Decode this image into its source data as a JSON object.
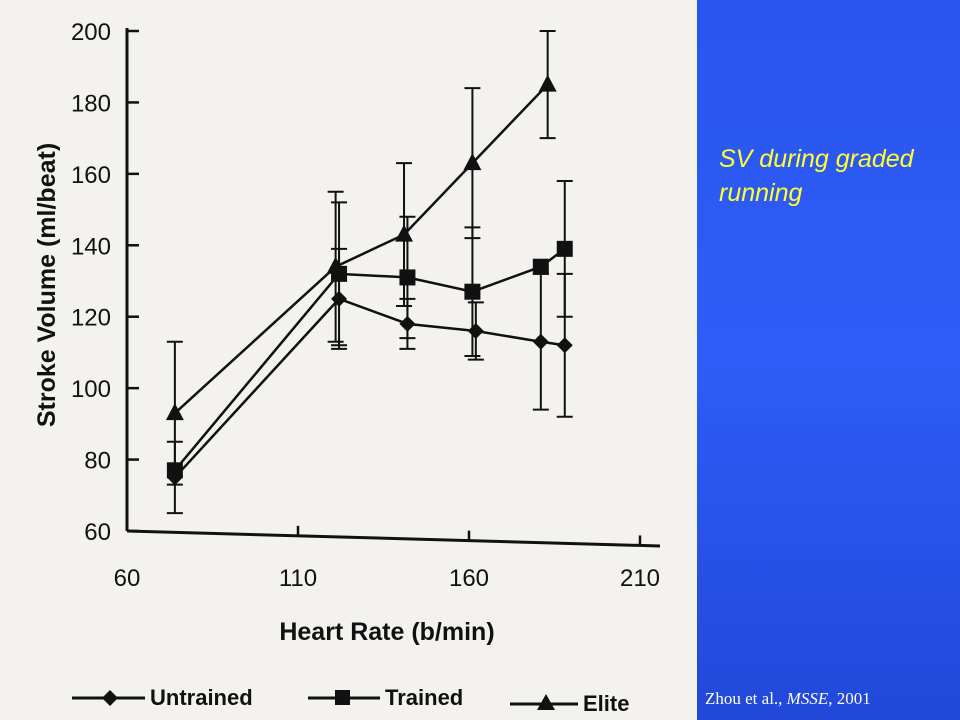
{
  "slide": {
    "title": "SV during graded running",
    "citation_prefix": "Zhou et al., ",
    "citation_journal": "MSSE",
    "citation_suffix": ", 2001",
    "colors": {
      "panel_blue": "#2f5cf8",
      "title_yellow": "#ffff33",
      "citation_white": "#ffffff"
    }
  },
  "chart_data": {
    "type": "line",
    "xlabel": "Heart Rate (b/min)",
    "ylabel": "Stroke Volume (ml/beat)",
    "xlim": [
      60,
      210
    ],
    "ylim": [
      60,
      200
    ],
    "xticks": [
      60,
      110,
      160,
      210
    ],
    "yticks": [
      60,
      80,
      100,
      120,
      140,
      160,
      180,
      200
    ],
    "grid": false,
    "legend_position": "bottom",
    "series": [
      {
        "name": "Untrained",
        "marker": "diamond",
        "points": [
          {
            "x": 74,
            "y": 75,
            "err": 10
          },
          {
            "x": 122,
            "y": 125,
            "err": 14
          },
          {
            "x": 142,
            "y": 118,
            "err": 7
          },
          {
            "x": 162,
            "y": 116,
            "err": 8
          },
          {
            "x": 181,
            "y": 113,
            "err": 19
          },
          {
            "x": 188,
            "y": 112,
            "err": 20
          }
        ]
      },
      {
        "name": "Trained",
        "marker": "square",
        "points": [
          {
            "x": 74,
            "y": 77,
            "err": 0
          },
          {
            "x": 122,
            "y": 132,
            "err": 20
          },
          {
            "x": 142,
            "y": 131,
            "err": 17
          },
          {
            "x": 161,
            "y": 127,
            "err": 18
          },
          {
            "x": 181,
            "y": 134,
            "err": 0
          },
          {
            "x": 188,
            "y": 139,
            "err": 19
          }
        ]
      },
      {
        "name": "Elite",
        "marker": "triangle",
        "points": [
          {
            "x": 74,
            "y": 93,
            "err": 20
          },
          {
            "x": 121,
            "y": 134,
            "err": 21
          },
          {
            "x": 141,
            "y": 143,
            "err": 20
          },
          {
            "x": 161,
            "y": 163,
            "err": 21
          },
          {
            "x": 183,
            "y": 185,
            "err": 15
          }
        ]
      }
    ]
  }
}
